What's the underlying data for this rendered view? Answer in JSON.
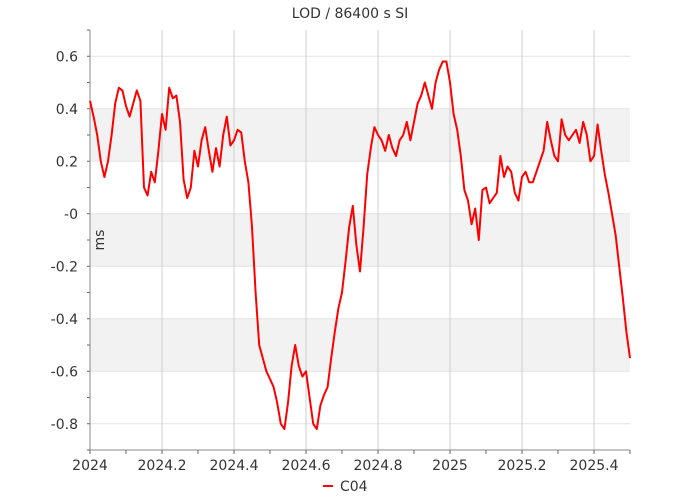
{
  "chart_data": {
    "type": "line",
    "title": "LOD / 86400 s SI",
    "xlabel": "",
    "ylabel": "ms",
    "xlim": [
      2024.0,
      2025.5
    ],
    "ylim": [
      -0.9,
      0.7
    ],
    "x_ticks": [
      "2024",
      "2024.2",
      "2024.4",
      "2024.6",
      "2024.8",
      "2025",
      "2025.2",
      "2025.4"
    ],
    "y_ticks": [
      "0.6",
      "0.4",
      "0.2",
      "-0",
      "-0.2",
      "-0.4",
      "-0.6",
      "-0.8"
    ],
    "grid": true,
    "legend": "bottom-center",
    "series": [
      {
        "name": "C04",
        "color": "#ff0000",
        "x": [
          2024.0,
          2024.01,
          2024.02,
          2024.03,
          2024.04,
          2024.05,
          2024.06,
          2024.07,
          2024.08,
          2024.09,
          2024.1,
          2024.11,
          2024.12,
          2024.13,
          2024.14,
          2024.15,
          2024.16,
          2024.17,
          2024.18,
          2024.19,
          2024.2,
          2024.21,
          2024.22,
          2024.23,
          2024.24,
          2024.25,
          2024.26,
          2024.27,
          2024.28,
          2024.29,
          2024.3,
          2024.31,
          2024.32,
          2024.33,
          2024.34,
          2024.35,
          2024.36,
          2024.37,
          2024.38,
          2024.39,
          2024.4,
          2024.41,
          2024.42,
          2024.43,
          2024.44,
          2024.45,
          2024.46,
          2024.47,
          2024.48,
          2024.49,
          2024.5,
          2024.51,
          2024.52,
          2024.53,
          2024.54,
          2024.55,
          2024.56,
          2024.57,
          2024.58,
          2024.59,
          2024.6,
          2024.61,
          2024.62,
          2024.63,
          2024.64,
          2024.65,
          2024.66,
          2024.67,
          2024.68,
          2024.69,
          2024.7,
          2024.71,
          2024.72,
          2024.73,
          2024.74,
          2024.75,
          2024.76,
          2024.77,
          2024.78,
          2024.79,
          2024.8,
          2024.81,
          2024.82,
          2024.83,
          2024.84,
          2024.85,
          2024.86,
          2024.87,
          2024.88,
          2024.89,
          2024.9,
          2024.91,
          2024.92,
          2024.93,
          2024.94,
          2024.95,
          2024.96,
          2024.97,
          2024.98,
          2024.99,
          2025.0,
          2025.01,
          2025.02,
          2025.03,
          2025.04,
          2025.05,
          2025.06,
          2025.07,
          2025.08,
          2025.09,
          2025.1,
          2025.11,
          2025.12,
          2025.13,
          2025.14,
          2025.15,
          2025.16,
          2025.17,
          2025.18,
          2025.19,
          2025.2,
          2025.21,
          2025.22,
          2025.23,
          2025.24,
          2025.25,
          2025.26,
          2025.27,
          2025.28,
          2025.29,
          2025.3,
          2025.31,
          2025.32,
          2025.33,
          2025.34,
          2025.35,
          2025.36,
          2025.37,
          2025.38,
          2025.39,
          2025.4,
          2025.41,
          2025.42,
          2025.43,
          2025.44,
          2025.45,
          2025.46,
          2025.47,
          2025.48,
          2025.49,
          2025.5
        ],
        "y": [
          0.43,
          0.37,
          0.3,
          0.2,
          0.14,
          0.2,
          0.3,
          0.42,
          0.48,
          0.47,
          0.41,
          0.37,
          0.42,
          0.47,
          0.43,
          0.1,
          0.07,
          0.16,
          0.12,
          0.24,
          0.38,
          0.32,
          0.48,
          0.44,
          0.45,
          0.35,
          0.13,
          0.06,
          0.1,
          0.24,
          0.18,
          0.28,
          0.33,
          0.24,
          0.16,
          0.25,
          0.18,
          0.3,
          0.37,
          0.26,
          0.28,
          0.32,
          0.31,
          0.2,
          0.12,
          -0.05,
          -0.3,
          -0.5,
          -0.55,
          -0.6,
          -0.63,
          -0.66,
          -0.72,
          -0.8,
          -0.82,
          -0.72,
          -0.58,
          -0.5,
          -0.58,
          -0.62,
          -0.6,
          -0.7,
          -0.8,
          -0.82,
          -0.73,
          -0.69,
          -0.66,
          -0.55,
          -0.45,
          -0.36,
          -0.3,
          -0.18,
          -0.05,
          0.03,
          -0.12,
          -0.22,
          -0.05,
          0.15,
          0.25,
          0.33,
          0.3,
          0.28,
          0.24,
          0.3,
          0.25,
          0.22,
          0.28,
          0.3,
          0.35,
          0.28,
          0.35,
          0.42,
          0.45,
          0.5,
          0.45,
          0.4,
          0.5,
          0.55,
          0.58,
          0.58,
          0.5,
          0.38,
          0.32,
          0.22,
          0.09,
          0.05,
          -0.04,
          0.02,
          -0.1,
          0.09,
          0.1,
          0.04,
          0.06,
          0.08,
          0.22,
          0.14,
          0.18,
          0.16,
          0.08,
          0.05,
          0.14,
          0.16,
          0.12,
          0.12,
          0.16,
          0.2,
          0.24,
          0.35,
          0.28,
          0.22,
          0.2,
          0.36,
          0.3,
          0.28,
          0.3,
          0.32,
          0.27,
          0.35,
          0.3,
          0.2,
          0.22,
          0.34,
          0.24,
          0.15,
          0.08,
          0.0,
          -0.08,
          -0.2,
          -0.32,
          -0.45,
          -0.55
        ]
      }
    ]
  }
}
